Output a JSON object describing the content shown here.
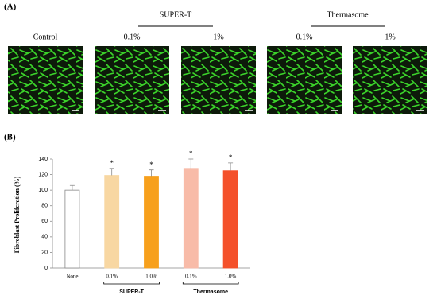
{
  "panel_a": {
    "label": "(A)",
    "group_labels": [
      "SUPER-T",
      "Thermasome"
    ],
    "image_labels": [
      "Control",
      "0.1%",
      "1%",
      "0.1%",
      "1%"
    ]
  },
  "chart_data": {
    "type": "bar",
    "panel_label": "(B)",
    "y_label": "Fibroblast Proliferation (%)",
    "categories": [
      "None",
      "0.1%",
      "1.0%",
      "0.1%",
      "1.0%"
    ],
    "groups": [
      "SUPER-T",
      "Thermasome"
    ],
    "values": [
      100,
      119,
      118,
      128,
      125
    ],
    "errors": [
      6,
      9,
      8,
      12,
      10
    ],
    "significance": [
      null,
      "*",
      "*",
      "*",
      "*"
    ],
    "colors": [
      "#ffffff",
      "#f8d7a2",
      "#f7a01c",
      "#f8bba8",
      "#f4512b"
    ],
    "ylim": [
      0,
      140
    ],
    "yticks": [
      0,
      20,
      40,
      60,
      80,
      100,
      120,
      140
    ]
  }
}
